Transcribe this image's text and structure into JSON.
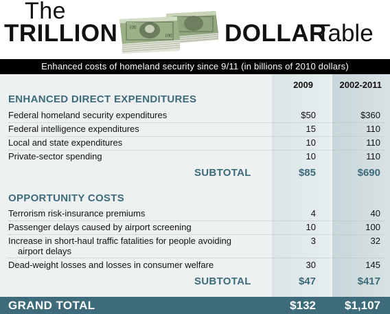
{
  "header": {
    "title_the": "The",
    "title_trillion": "TRILLION",
    "title_dollar": "DOLLAR",
    "title_table": "Table",
    "subtitle": "Enhanced costs of homeland security since 9/11 (in billions of 2010 dollars)"
  },
  "columns": {
    "col1": "2009",
    "col2": "2002-2011"
  },
  "section1": {
    "title": "ENHANCED DIRECT EXPENDITURES",
    "rows": [
      {
        "label": "Federal homeland security expenditures",
        "v2009": "$50",
        "vrange": "$360"
      },
      {
        "label": "Federal intelligence expenditures",
        "v2009": "15",
        "vrange": "110"
      },
      {
        "label": "Local and state expenditures",
        "v2009": "10",
        "vrange": "110"
      },
      {
        "label": "Private-sector spending",
        "v2009": "10",
        "vrange": "110"
      }
    ],
    "subtotal_label": "SUBTOTAL",
    "subtotal_2009": "$85",
    "subtotal_range": "$690"
  },
  "section2": {
    "title": "OPPORTUNITY COSTS",
    "rows": [
      {
        "label": "Terrorism risk-insurance premiums",
        "v2009": "4",
        "vrange": "40"
      },
      {
        "label": "Passenger delays caused by airport screening",
        "v2009": "10",
        "vrange": "100"
      },
      {
        "label": "Increase in short-haul traffic fatalities for people avoiding",
        "label2": "airport delays",
        "v2009": "3",
        "vrange": "32"
      },
      {
        "label": "Dead-weight losses and losses in consumer welfare",
        "v2009": "30",
        "vrange": "145"
      }
    ],
    "subtotal_label": "SUBTOTAL",
    "subtotal_2009": "$47",
    "subtotal_range": "$417"
  },
  "grand_total": {
    "label": "GRAND TOTAL",
    "v2009": "$132",
    "vrange": "$1,107"
  },
  "colors": {
    "accent": "#3d6b7a",
    "money_green": "#6f8a5a"
  }
}
